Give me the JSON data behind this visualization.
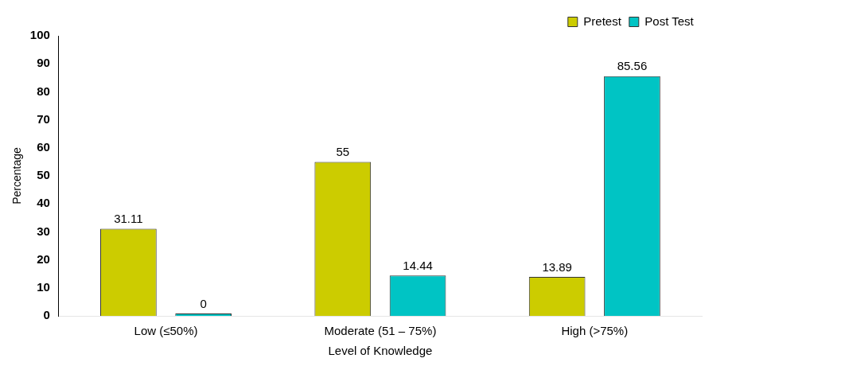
{
  "chart_data": {
    "type": "bar",
    "xlabel": "Level of Knowledge",
    "ylabel": "Percentage",
    "categories": [
      "Low (≤50%)",
      "Moderate (51 – 75%)",
      "High (>75%)"
    ],
    "series": [
      {
        "name": "Pretest",
        "color": "#cccc00",
        "values": [
          31.11,
          55,
          13.89
        ]
      },
      {
        "name": "Post Test",
        "color": "#00c4c4",
        "values": [
          0,
          14.44,
          85.56
        ]
      }
    ],
    "ylim": [
      0,
      100
    ],
    "yticks": [
      0,
      10,
      20,
      30,
      40,
      50,
      60,
      70,
      80,
      90,
      100
    ],
    "data_labels": true,
    "legend": "top right"
  }
}
